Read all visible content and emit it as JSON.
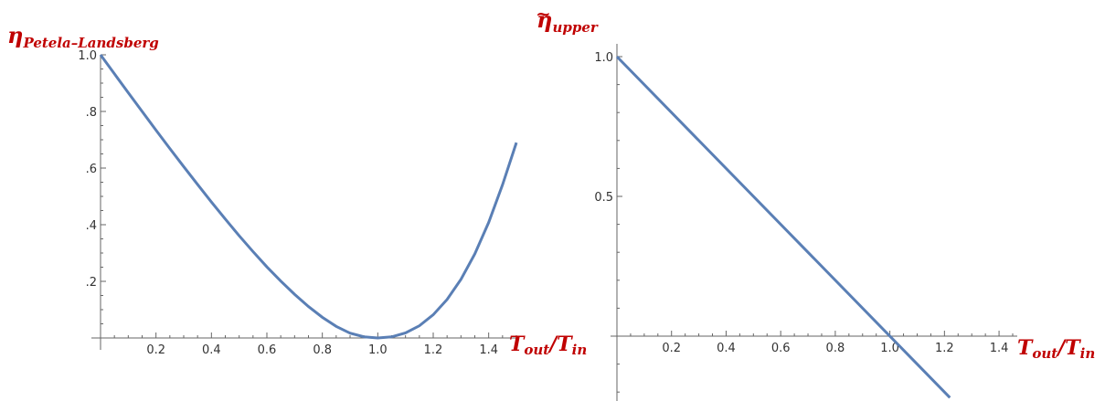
{
  "colors": {
    "curve": "#5a7fb5",
    "axis": "#666666",
    "label": "#c00000"
  },
  "chart_data": [
    {
      "type": "line",
      "title": "",
      "xlabel": {
        "main": "T",
        "sub1": "out",
        "slash": "/T",
        "sub2": "in"
      },
      "ylabel": {
        "main": "η",
        "sub": "Petela–Landsberg"
      },
      "xlim": [
        0,
        1.5
      ],
      "ylim": [
        0,
        1.0
      ],
      "x_ticks": [
        "0.2",
        "0.4",
        "0.6",
        "0.8",
        "1.0",
        "1.2",
        "1.4"
      ],
      "y_ticks": [
        ".2",
        ".4",
        ".6",
        ".8",
        "1.0"
      ],
      "series": [
        {
          "x": [
            0.0,
            0.05,
            0.1,
            0.15,
            0.2,
            0.25,
            0.3,
            0.35,
            0.4,
            0.45,
            0.5,
            0.55,
            0.6,
            0.65,
            0.7,
            0.75,
            0.8,
            0.85,
            0.9,
            0.95,
            1.0,
            1.05,
            1.1,
            1.15,
            1.2,
            1.25,
            1.3,
            1.35,
            1.4,
            1.45,
            1.5
          ],
          "y": [
            1.0,
            0.933,
            0.866,
            0.8,
            0.734,
            0.669,
            0.605,
            0.542,
            0.48,
            0.42,
            0.361,
            0.305,
            0.251,
            0.201,
            0.154,
            0.111,
            0.073,
            0.041,
            0.017,
            0.004,
            0.0,
            0.004,
            0.018,
            0.043,
            0.082,
            0.136,
            0.207,
            0.297,
            0.408,
            0.541,
            0.69
          ]
        }
      ]
    },
    {
      "type": "line",
      "title": "",
      "xlabel": {
        "main": "T",
        "sub1": "out",
        "slash": "/T",
        "sub2": "in"
      },
      "ylabel": {
        "main": "η",
        "sub": "upper"
      },
      "xlim": [
        0,
        1.45
      ],
      "ylim": [
        -0.22,
        1.0
      ],
      "x_ticks": [
        "0.2",
        "0.4",
        "0.6",
        "0.8",
        "1.0",
        "1.2",
        "1.4"
      ],
      "y_ticks": [
        "0.5",
        "1.0"
      ],
      "series": [
        {
          "x": [
            0.0,
            1.22
          ],
          "y": [
            1.0,
            -0.22
          ]
        }
      ]
    }
  ]
}
